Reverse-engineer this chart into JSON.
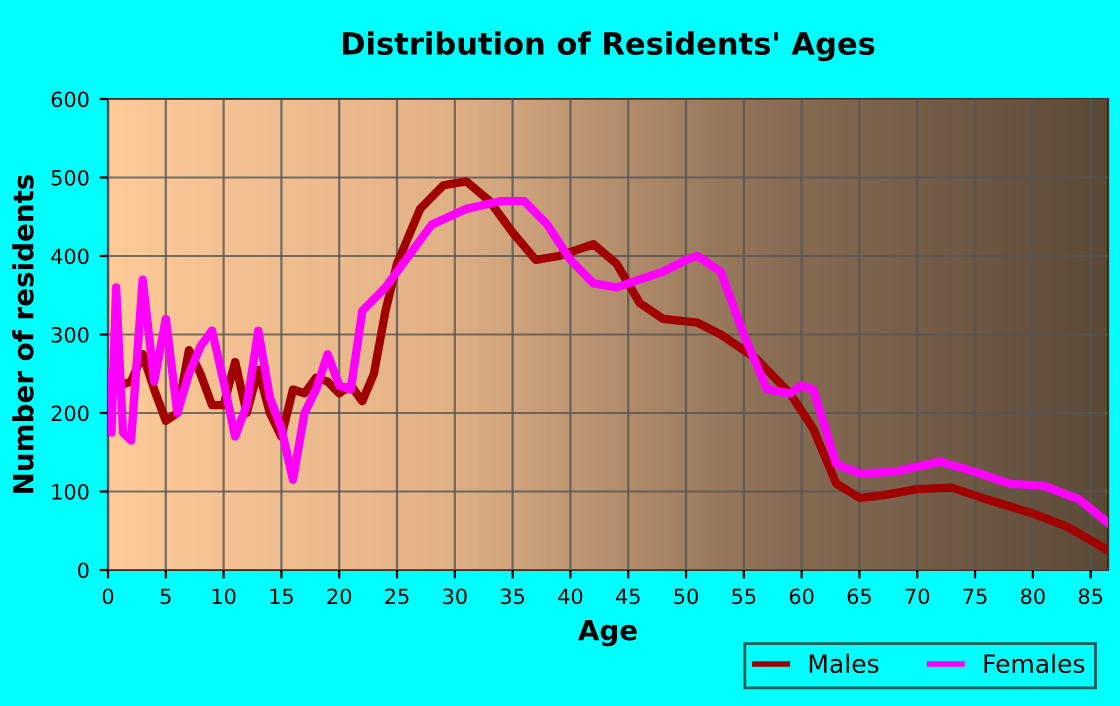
{
  "chart_data": {
    "type": "line",
    "title": "Distribution of Residents' Ages",
    "xlabel": "Age",
    "ylabel": "Number of residents",
    "xlim": [
      0,
      86.5
    ],
    "xticks": [
      0,
      5,
      10,
      15,
      20,
      25,
      30,
      35,
      40,
      45,
      50,
      55,
      60,
      65,
      70,
      75,
      80,
      85
    ],
    "ylim": [
      0,
      600
    ],
    "yticks": [
      0,
      100,
      200,
      300,
      400,
      500,
      600
    ],
    "grid": true,
    "legend": "bottom right",
    "marker": "none",
    "line_style": "solid",
    "series": [
      {
        "name": "Males",
        "color": "#a00000",
        "x": [
          0,
          0.5,
          1,
          2,
          3,
          4,
          5,
          6,
          7,
          8,
          9,
          10,
          11,
          12,
          13,
          14,
          15,
          16,
          17,
          18,
          19,
          20,
          21,
          22,
          23,
          24,
          25,
          27,
          29,
          31,
          33,
          35,
          37,
          39,
          42,
          44,
          46,
          48,
          51,
          53,
          56,
          59,
          61,
          63,
          65,
          67,
          70,
          73,
          76,
          80,
          83,
          86.5
        ],
        "values": [
          225,
          240,
          235,
          240,
          275,
          230,
          190,
          200,
          280,
          250,
          210,
          210,
          265,
          200,
          255,
          200,
          170,
          230,
          225,
          245,
          240,
          225,
          235,
          215,
          250,
          330,
          390,
          460,
          490,
          495,
          470,
          430,
          395,
          400,
          415,
          390,
          340,
          320,
          315,
          300,
          270,
          225,
          180,
          110,
          92,
          95,
          103,
          105,
          90,
          72,
          55,
          25
        ]
      },
      {
        "name": "Females",
        "color": "#ff00ff",
        "x": [
          0,
          0.3,
          0.7,
          1.3,
          2,
          3,
          4,
          5,
          6,
          7,
          8,
          9,
          10,
          11,
          12,
          13,
          14,
          15,
          16,
          17,
          18,
          19,
          20,
          21,
          22,
          23,
          24,
          26,
          28,
          31,
          34,
          36,
          38,
          40,
          42,
          44,
          46,
          48,
          50,
          51,
          53,
          55,
          57,
          59,
          60,
          61,
          63,
          65,
          68,
          72,
          75,
          78,
          81,
          84,
          86.5
        ],
        "values": [
          250,
          175,
          360,
          175,
          165,
          370,
          240,
          320,
          200,
          250,
          285,
          305,
          240,
          170,
          210,
          305,
          220,
          180,
          115,
          200,
          230,
          275,
          235,
          230,
          330,
          345,
          360,
          400,
          440,
          460,
          470,
          470,
          440,
          395,
          365,
          360,
          370,
          380,
          395,
          400,
          380,
          300,
          230,
          225,
          235,
          230,
          135,
          123,
          125,
          138,
          125,
          110,
          107,
          90,
          60
        ]
      }
    ]
  }
}
